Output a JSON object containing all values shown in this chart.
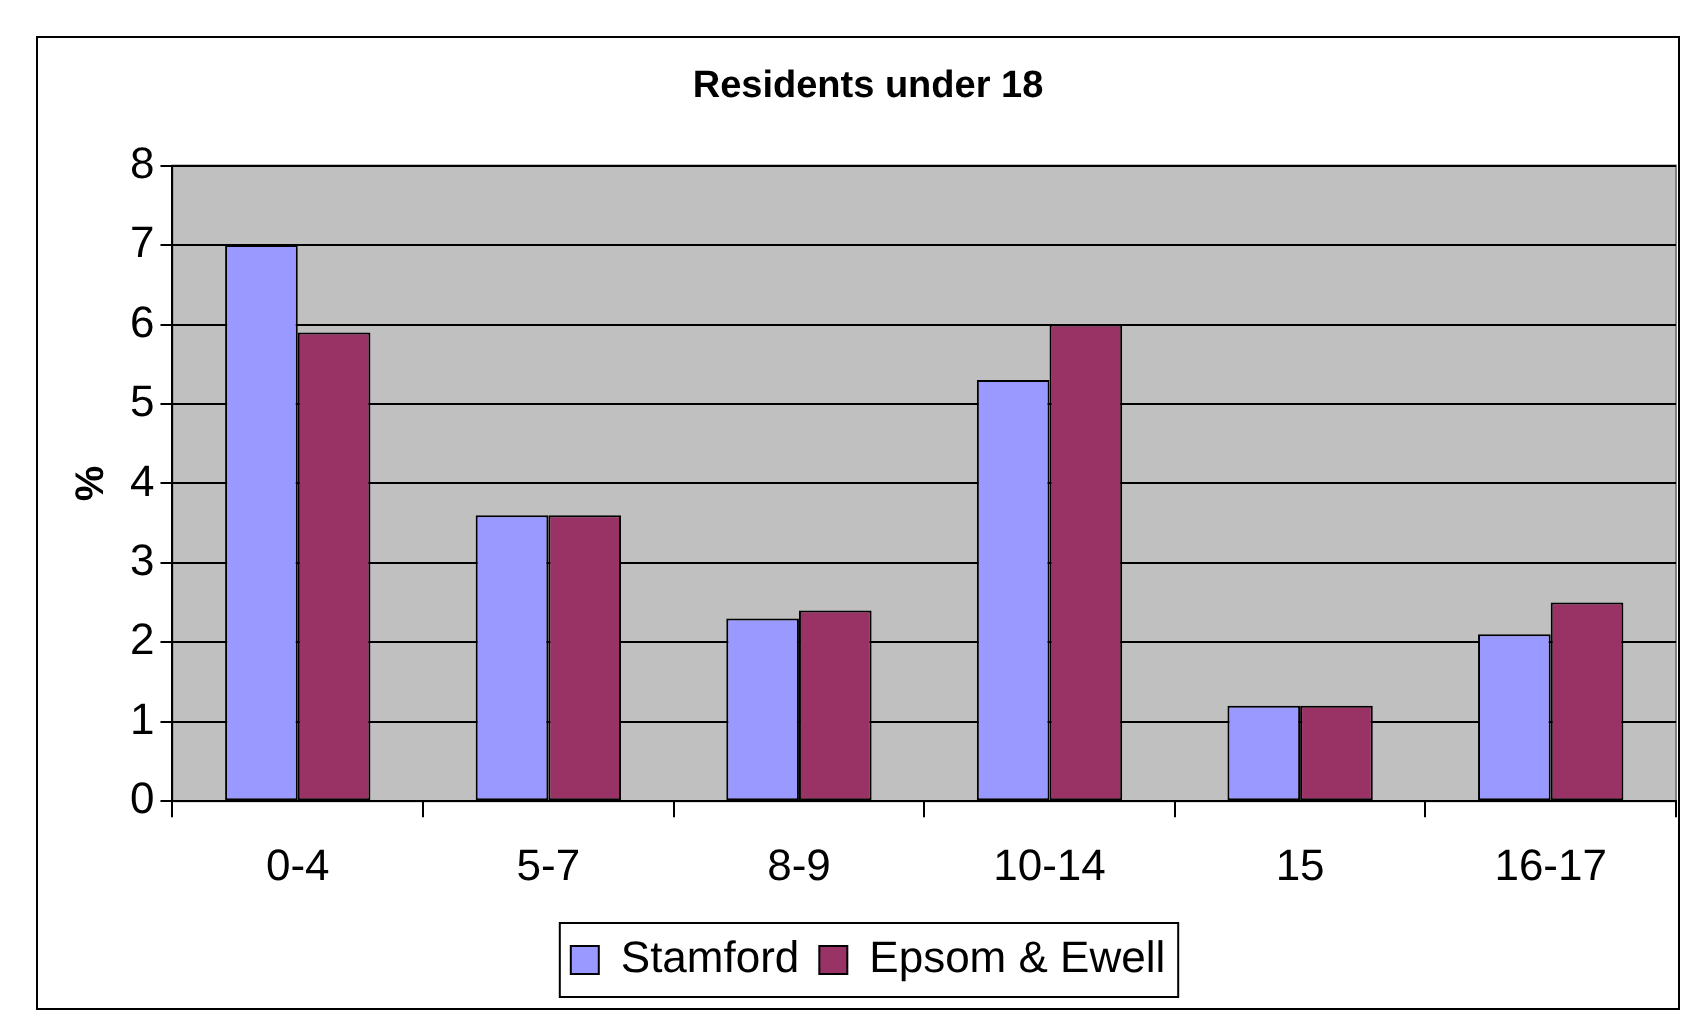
{
  "chart_data": {
    "type": "bar",
    "title": "Residents under 18",
    "ylabel": "%",
    "categories": [
      "0-4",
      "5-7",
      "8-9",
      "10-14",
      "15",
      "16-17"
    ],
    "series": [
      {
        "name": "Stamford",
        "color": "#9999ff",
        "values": [
          7.0,
          3.6,
          2.3,
          5.3,
          1.2,
          2.1
        ]
      },
      {
        "name": "Epsom & Ewell",
        "color": "#993366",
        "values": [
          5.9,
          3.6,
          2.4,
          6.0,
          1.2,
          2.5
        ]
      }
    ],
    "ylim": [
      0,
      8
    ],
    "yticks": [
      0,
      1,
      2,
      3,
      4,
      5,
      6,
      7,
      8
    ],
    "grid": "y",
    "legend": "bottom"
  }
}
